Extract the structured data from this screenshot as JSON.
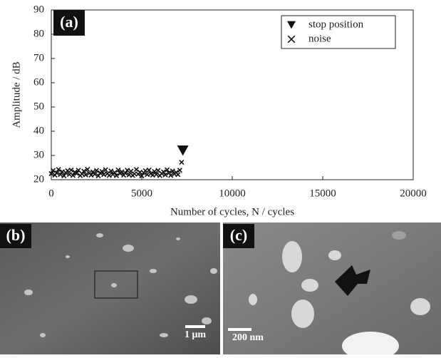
{
  "chart_data": {
    "type": "scatter",
    "panel_label": "(a)",
    "xlabel": "Number of cycles, N / cycles",
    "ylabel": "Amplitude / dB",
    "xlim": [
      0,
      20000
    ],
    "ylim": [
      20,
      90
    ],
    "xticks": [
      0,
      5000,
      10000,
      15000,
      20000
    ],
    "yticks": [
      20,
      30,
      40,
      50,
      60,
      70,
      80,
      90
    ],
    "legend": "upper right",
    "series": [
      {
        "name": "stop position",
        "color": "#111",
        "marker": "triangle-down",
        "x": [
          7270
        ],
        "values": [
          32
        ]
      },
      {
        "name": "noise",
        "color": "#111",
        "marker": "x",
        "x": [
          0,
          100,
          200,
          300,
          400,
          500,
          600,
          700,
          800,
          900,
          1000,
          1100,
          1200,
          1300,
          1400,
          1500,
          1600,
          1700,
          1800,
          1900,
          2000,
          2100,
          2200,
          2300,
          2400,
          2500,
          2600,
          2700,
          2800,
          2900,
          3000,
          3100,
          3200,
          3300,
          3400,
          3500,
          3600,
          3700,
          3800,
          3900,
          4000,
          4100,
          4200,
          4300,
          4400,
          4500,
          4600,
          4700,
          4800,
          4900,
          5000,
          5100,
          5200,
          5300,
          5400,
          5500,
          5600,
          5700,
          5800,
          5900,
          6000,
          6100,
          6200,
          6300,
          6400,
          6500,
          6600,
          6700,
          6800,
          6900,
          7000,
          7100,
          7200
        ],
        "values": [
          22.5,
          23.8,
          21.9,
          22.8,
          24.2,
          22.1,
          23.3,
          21.6,
          22.9,
          23.7,
          22.2,
          24.0,
          21.8,
          23.1,
          22.6,
          23.9,
          21.7,
          22.4,
          23.5,
          22.0,
          24.3,
          22.7,
          21.9,
          23.2,
          22.3,
          23.8,
          21.6,
          22.8,
          23.4,
          22.1,
          24.1,
          22.5,
          21.8,
          23.6,
          22.2,
          23.0,
          21.7,
          24.0,
          22.6,
          23.3,
          21.9,
          22.7,
          23.9,
          22.0,
          23.5,
          21.8,
          22.4,
          24.2,
          22.3,
          23.1,
          21.6,
          22.9,
          23.7,
          22.1,
          24.0,
          22.5,
          21.9,
          23.4,
          22.2,
          23.8,
          21.7,
          22.6,
          23.2,
          22.0,
          24.1,
          22.8,
          21.8,
          23.6,
          22.4,
          23.0,
          22.1,
          23.9,
          27.2
        ]
      }
    ]
  },
  "images": [
    {
      "label": "(b)",
      "scale_bar": "1 μm"
    },
    {
      "label": "(c)",
      "scale_bar": "200 nm"
    }
  ]
}
